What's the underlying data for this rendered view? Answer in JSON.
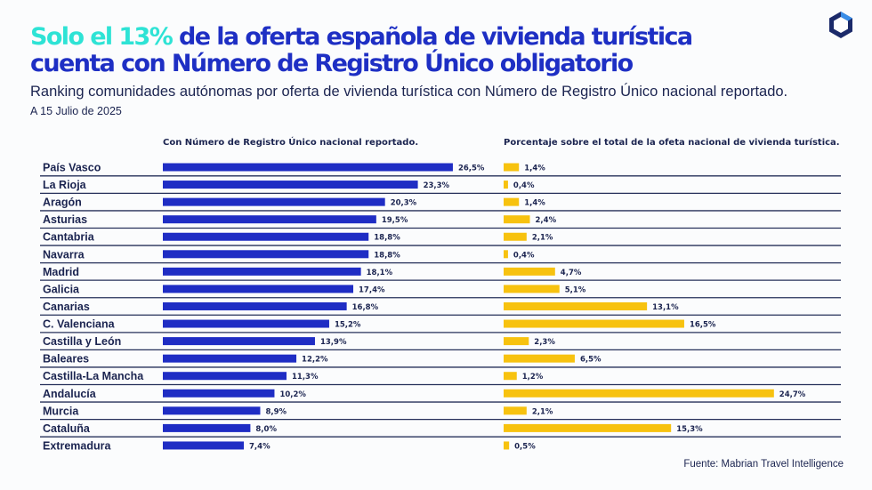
{
  "title": {
    "highlight": "Solo el 13%",
    "line1_rest": " de la oferta española de vivienda turística",
    "line2": "cuenta con Número de Registro Único obligatorio"
  },
  "subtitle": "Ranking comunidades autónomas por oferta de vivienda turística con Número de Registro Único nacional reportado.",
  "date": "A 15 Julio de 2025",
  "source": "Fuente: Mabrian Travel Intelligence",
  "colors": {
    "blue": "#1f2dc4",
    "yellow": "#f7c20f",
    "cyan": "#2ee3d5",
    "text": "#1b2450"
  },
  "chart_data": {
    "type": "bar",
    "orientation": "horizontal",
    "categories": [
      "País Vasco",
      "La Rioja",
      "Aragón",
      "Asturias",
      "Cantabria",
      "Navarra",
      "Madrid",
      "Galicia",
      "Canarias",
      "C. Valenciana",
      "Castilla y León",
      "Baleares",
      "Castilla-La Mancha",
      "Andalucía",
      "Murcia",
      "Cataluña",
      "Extremadura"
    ],
    "series": [
      {
        "name": "Con Número de Registro Único nacional reportado.",
        "color": "#1f2dc4",
        "values": [
          26.5,
          23.3,
          20.3,
          19.5,
          18.8,
          18.8,
          18.1,
          17.4,
          16.8,
          15.2,
          13.9,
          12.2,
          11.3,
          10.2,
          8.9,
          8.0,
          7.4
        ],
        "labels": [
          "26,5%",
          "23,3%",
          "20,3%",
          "19,5%",
          "18,8%",
          "18,8%",
          "18,1%",
          "17,4%",
          "16,8%",
          "15,2%",
          "13,9%",
          "12,2%",
          "11,3%",
          "10,2%",
          "8,9%",
          "8,0%",
          "7,4%"
        ]
      },
      {
        "name": "Porcentaje sobre el total de la ofeta nacional de vivienda turística.",
        "color": "#f7c20f",
        "values": [
          1.4,
          0.4,
          1.4,
          2.4,
          2.1,
          0.4,
          4.7,
          5.1,
          13.1,
          16.5,
          2.3,
          6.5,
          1.2,
          24.7,
          2.1,
          15.3,
          0.5
        ],
        "labels": [
          "1,4%",
          "0,4%",
          "1,4%",
          "2,4%",
          "2,1%",
          "0,4%",
          "4,7%",
          "5,1%",
          "13,1%",
          "16,5%",
          "2,3%",
          "6,5%",
          "1,2%",
          "24,7%",
          "2,1%",
          "15,3%",
          "0,5%"
        ]
      }
    ],
    "grid": false
  }
}
